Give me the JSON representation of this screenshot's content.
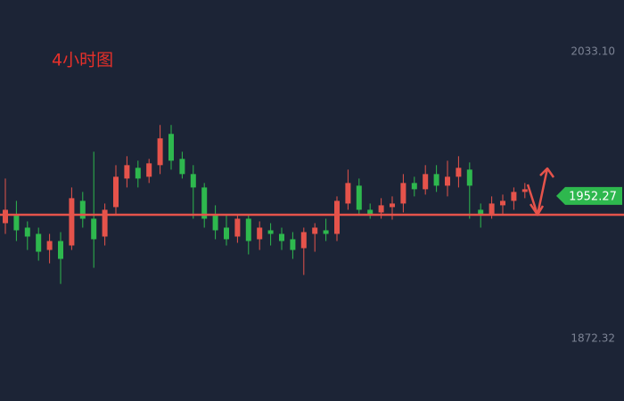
{
  "chart_data": {
    "type": "candlestick",
    "title": "4小时图",
    "ylim": [
      1837.4,
      2062.0
    ],
    "yticks": [
      {
        "value": 2033.1,
        "label": "2033.10"
      },
      1872.32
    ],
    "last_price": 1952.27,
    "support_level": 1941.7,
    "up_color": "#e5534b",
    "down_color": "#2eb84e",
    "open": [
      1937,
      1942,
      1934.5,
      1931,
      1922,
      1927,
      1924.5,
      1949.5,
      1939.5,
      1929.5,
      1946,
      1962,
      1968,
      1963,
      1969.5,
      1987,
      1973,
      1964.5,
      1957,
      1942,
      1934.5,
      1929.5,
      1939.5,
      1928,
      1933,
      1931,
      1928,
      1923,
      1931,
      1933,
      1931,
      1948,
      1958,
      1944.5,
      1943,
      1946,
      1948,
      1959.5,
      1956,
      1964.5,
      1958,
      1963,
      1967,
      1944.5,
      1942,
      1947,
      1949.5,
      1954.5
    ],
    "close": [
      1944.5,
      1933,
      1929.5,
      1921,
      1927,
      1917,
      1951,
      1939.5,
      1928,
      1944.5,
      1963,
      1969.5,
      1962,
      1970.5,
      1984.5,
      1972,
      1964.5,
      1957,
      1939.5,
      1933,
      1928,
      1939.5,
      1927,
      1934.5,
      1931,
      1927,
      1922,
      1932,
      1934.5,
      1931,
      1949.5,
      1959.5,
      1944.5,
      1942,
      1947,
      1948,
      1959.5,
      1956,
      1964.5,
      1958,
      1963,
      1968,
      1958,
      1942,
      1948,
      1949.5,
      1954.5,
      1956
    ],
    "high": [
      1962,
      1949.5,
      1938,
      1934.5,
      1931,
      1932,
      1957,
      1954.5,
      1977,
      1948,
      1969.5,
      1974.5,
      1972,
      1973,
      1992,
      1992,
      1977,
      1969.5,
      1959.5,
      1947,
      1942,
      1942,
      1942,
      1938,
      1937,
      1934.5,
      1932,
      1934.5,
      1937,
      1939.5,
      1952,
      1967,
      1962,
      1948,
      1951,
      1952,
      1964.5,
      1963,
      1969.5,
      1969.5,
      1972,
      1974.5,
      1971,
      1948,
      1952,
      1953,
      1957,
      1959.5
    ],
    "low": [
      1931,
      1927,
      1922,
      1916,
      1914.5,
      1903,
      1922,
      1934.5,
      1912,
      1924.5,
      1942,
      1957,
      1957,
      1959.5,
      1964.5,
      1967,
      1962,
      1939.5,
      1934.5,
      1928,
      1924.5,
      1926,
      1919.5,
      1922,
      1924.5,
      1922,
      1917,
      1908,
      1921,
      1927,
      1927,
      1944.5,
      1942,
      1939.5,
      1939.5,
      1939,
      1943,
      1952,
      1953,
      1954.5,
      1952,
      1957,
      1939.5,
      1934.5,
      1939.5,
      1942,
      1944.5,
      1951
    ]
  }
}
